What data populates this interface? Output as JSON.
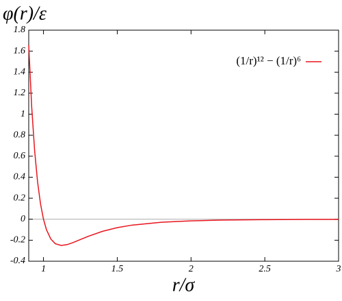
{
  "chart_data": {
    "type": "line",
    "y_label": "φ(r)/ε",
    "x_label": "r/σ",
    "x": [
      0.9,
      0.92,
      0.94,
      0.96,
      0.98,
      1.0,
      1.02,
      1.05,
      1.08,
      1.12,
      1.16,
      1.2,
      1.3,
      1.4,
      1.5,
      1.6,
      1.8,
      2.0,
      2.2,
      2.5,
      2.8,
      3.0
    ],
    "series": [
      {
        "name": "(1/r)¹² − (1/r)⁶",
        "color": "#e8141c",
        "values": [
          1.659,
          1.071,
          0.652,
          0.355,
          0.145,
          0,
          -0.0995,
          -0.1894,
          -0.2331,
          -0.25,
          -0.242,
          -0.2227,
          -0.1643,
          -0.1152,
          -0.0801,
          -0.0561,
          -0.0285,
          -0.0154,
          -0.0087,
          -0.0041,
          -0.0021,
          -0.0014
        ]
      }
    ],
    "xlim": [
      0.9,
      3
    ],
    "ylim": [
      -0.4,
      1.8
    ],
    "xticks": [
      1,
      1.5,
      2,
      2.5,
      3
    ],
    "yticks": [
      -0.4,
      -0.2,
      0,
      0.2,
      0.4,
      0.6,
      0.8,
      1,
      1.2,
      1.4,
      1.6,
      1.8
    ],
    "zero_line": true,
    "legend": "top-right"
  }
}
